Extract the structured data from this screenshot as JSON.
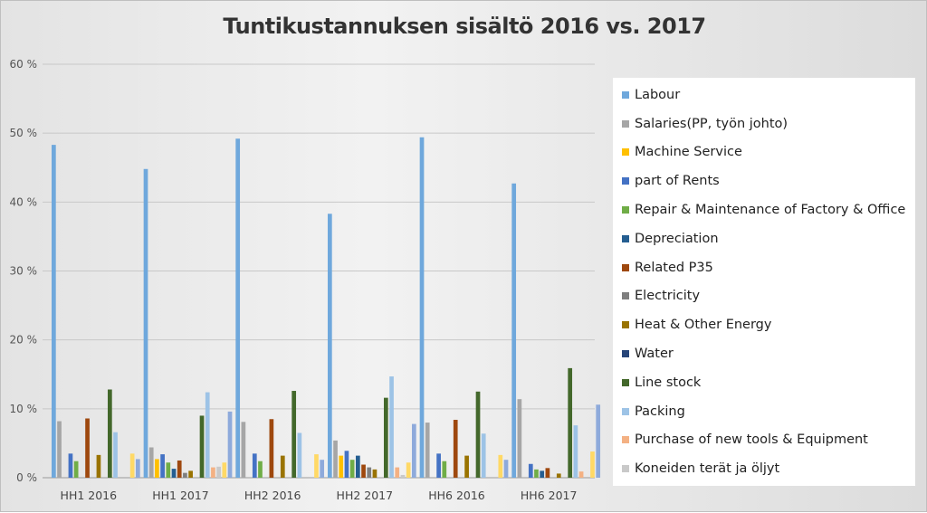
{
  "chart_data": {
    "type": "bar",
    "title": "Tuntikustannuksen sisältö 2016 vs. 2017",
    "categories": [
      "HH1 2016",
      "HH1 2017",
      "HH2 2016",
      "HH2 2017",
      "HH6 2016",
      "HH6 2017"
    ],
    "y_ticks": [
      "0 %",
      "10 %",
      "20 %",
      "30 %",
      "40 %",
      "50 %",
      "60 %"
    ],
    "ylim": [
      0,
      60
    ],
    "grid": true,
    "legend_position": "right",
    "series": [
      {
        "name": "Labour",
        "color": "#6fa8dc",
        "values": [
          48.3,
          44.8,
          49.2,
          38.3,
          49.4,
          42.7
        ]
      },
      {
        "name": "Salaries(PP, työn johto)",
        "color": "#a6a6a6",
        "values": [
          8.2,
          4.4,
          8.1,
          5.4,
          8.0,
          11.4
        ]
      },
      {
        "name": "Machine Service",
        "color": "#ffc000",
        "values": [
          0,
          2.7,
          0,
          3.2,
          0,
          0
        ]
      },
      {
        "name": "part of Rents",
        "color": "#4472c4",
        "values": [
          3.5,
          3.4,
          3.5,
          3.9,
          3.5,
          2.0
        ]
      },
      {
        "name": "Repair & Maintenance of Factory & Office",
        "color": "#70ad47",
        "values": [
          2.4,
          2.2,
          2.4,
          2.6,
          2.4,
          1.2
        ]
      },
      {
        "name": "Depreciation",
        "color": "#255e91",
        "values": [
          0,
          1.3,
          0,
          3.2,
          0,
          1.0
        ]
      },
      {
        "name": "Related P35",
        "color": "#9e480e",
        "values": [
          8.6,
          2.5,
          8.5,
          1.9,
          8.4,
          1.4
        ]
      },
      {
        "name": "Electricity",
        "color": "#7f7f7f",
        "values": [
          0,
          0.7,
          0,
          1.5,
          0,
          0
        ]
      },
      {
        "name": "Heat & Other Energy",
        "color": "#997300",
        "values": [
          3.3,
          1.0,
          3.2,
          1.2,
          3.2,
          0.6
        ]
      },
      {
        "name": "Water",
        "color": "#264478",
        "values": [
          0,
          0,
          0,
          0,
          0,
          0
        ]
      },
      {
        "name": "Line stock",
        "color": "#43682b",
        "values": [
          12.8,
          9.0,
          12.6,
          11.6,
          12.5,
          15.9
        ]
      },
      {
        "name": "Packing",
        "color": "#9dc3e6",
        "values": [
          6.6,
          12.4,
          6.5,
          14.7,
          6.4,
          7.6
        ]
      },
      {
        "name": "Purchase of new tools & Equipment",
        "color": "#f4b183",
        "values": [
          0,
          1.5,
          0,
          1.5,
          0,
          0.9
        ]
      },
      {
        "name": "Koneiden terät ja öljyt",
        "color": "#c9c9c9",
        "values": [
          0,
          1.6,
          0,
          0.4,
          0,
          0
        ]
      },
      {
        "name": "",
        "color": "#ffd966",
        "values": [
          3.5,
          2.2,
          3.4,
          2.2,
          3.3,
          3.8
        ]
      },
      {
        "name": "",
        "color": "#8eaadb",
        "values": [
          2.7,
          9.6,
          2.6,
          7.8,
          2.6,
          10.6
        ]
      }
    ]
  }
}
